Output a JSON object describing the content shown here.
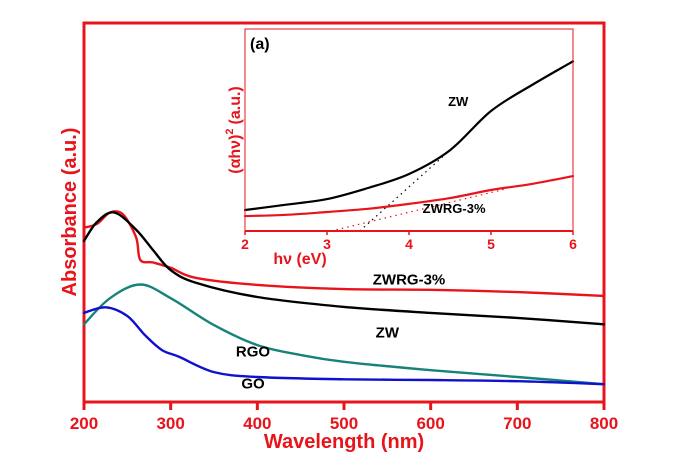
{
  "chart_data": [
    {
      "id": "main",
      "type": "line",
      "title": "",
      "xlabel": "Wavelength (nm)",
      "ylabel": "Absorbance (a.u.)",
      "xlim": [
        200,
        800
      ],
      "ylim": [
        0,
        1
      ],
      "xticks": [
        200,
        300,
        400,
        500,
        600,
        700,
        800
      ],
      "xtick_labels": [
        "200",
        "300",
        "400",
        "500",
        "600",
        "700",
        "800"
      ],
      "yticks": [],
      "grid": false,
      "legend": "inline labels",
      "axis_color": "#e8141b",
      "series": [
        {
          "name": "ZWRG-3%",
          "color": "#e8141b",
          "label_at": [
            575,
            0.31
          ],
          "x": [
            200,
            215,
            230,
            245,
            260,
            265,
            280,
            300,
            330,
            400,
            500,
            600,
            700,
            800
          ],
          "y": [
            0.46,
            0.47,
            0.5,
            0.495,
            0.435,
            0.375,
            0.368,
            0.354,
            0.327,
            0.309,
            0.298,
            0.296,
            0.29,
            0.28
          ]
        },
        {
          "name": "ZW",
          "color": "#000000",
          "label_at": [
            550,
            0.17
          ],
          "x": [
            200,
            215,
            235,
            260,
            280,
            300,
            330,
            400,
            500,
            600,
            700,
            800
          ],
          "y": [
            0.425,
            0.475,
            0.5,
            0.455,
            0.4,
            0.348,
            0.314,
            0.277,
            0.251,
            0.235,
            0.222,
            0.205
          ]
        },
        {
          "name": "RGO",
          "color": "#16837a",
          "label_at": [
            395,
            0.12
          ],
          "x": [
            200,
            230,
            265,
            300,
            350,
            400,
            450,
            500,
            600,
            700,
            800
          ],
          "y": [
            0.205,
            0.274,
            0.31,
            0.274,
            0.203,
            0.15,
            0.124,
            0.106,
            0.084,
            0.066,
            0.047
          ]
        },
        {
          "name": "GO",
          "color": "#1010d0",
          "label_at": [
            395,
            0.035
          ],
          "x": [
            200,
            225,
            250,
            270,
            290,
            310,
            350,
            400,
            500,
            600,
            700,
            800
          ],
          "y": [
            0.235,
            0.25,
            0.227,
            0.177,
            0.137,
            0.119,
            0.079,
            0.066,
            0.06,
            0.058,
            0.055,
            0.047
          ]
        }
      ]
    },
    {
      "id": "inset",
      "type": "line",
      "panel_label": "(a)",
      "title": "",
      "xlabel": "hν (eV)",
      "ylabel": "(αhν)² (a.u.)",
      "ylabel_base": "(αhν)",
      "ylabel_sup": "2",
      "ylabel_unit": "(a.u.)",
      "xlim": [
        2,
        6
      ],
      "ylim": [
        0,
        1
      ],
      "xticks": [
        2,
        3,
        4,
        5,
        6
      ],
      "xtick_labels": [
        "2",
        "3",
        "4",
        "5",
        "6"
      ],
      "yticks": [],
      "grid": false,
      "legend": "inline labels",
      "axis_color": "#e8141b",
      "series": [
        {
          "name": "ZW",
          "color": "#000000",
          "label_at": [
            4.6,
            0.62
          ],
          "x": [
            2,
            2.5,
            3,
            3.5,
            4,
            4.5,
            5,
            5.5,
            6
          ],
          "y": [
            0.104,
            0.13,
            0.158,
            0.213,
            0.282,
            0.4,
            0.594,
            0.723,
            0.84
          ]
        },
        {
          "name": "ZWRG-3%",
          "color": "#e8141b",
          "label_at": [
            4.55,
            0.09
          ],
          "x": [
            2,
            2.5,
            3,
            3.5,
            4,
            4.5,
            5,
            5.5,
            6
          ],
          "y": [
            0.074,
            0.08,
            0.094,
            0.11,
            0.134,
            0.163,
            0.203,
            0.233,
            0.272
          ]
        }
      ],
      "tangent_lines": [
        {
          "name": "ZW band-gap extrapolation",
          "color": "#000000",
          "x": [
            3.4,
            4.5
          ],
          "y": [
            0,
            0.4
          ]
        },
        {
          "name": "ZWRG-3% band-gap extrapolation",
          "color": "#e8141b",
          "x": [
            3.05,
            5.2
          ],
          "y": [
            0,
            0.21
          ]
        }
      ]
    }
  ]
}
